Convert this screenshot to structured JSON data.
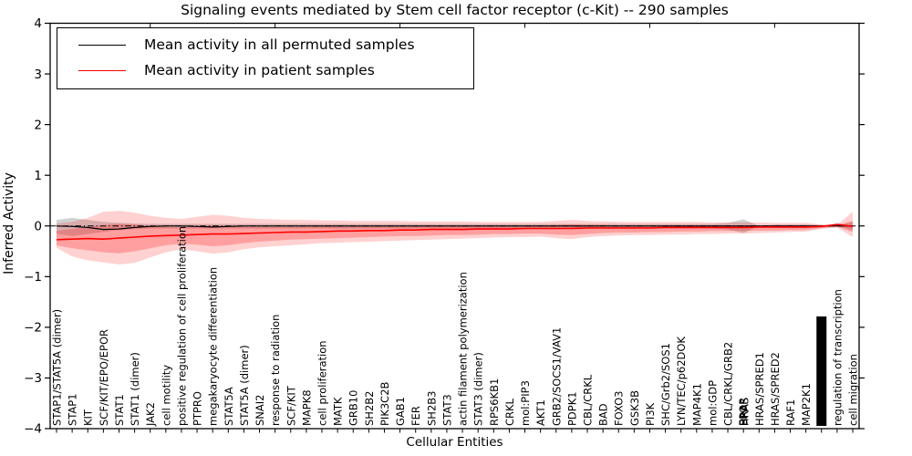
{
  "chart_data": {
    "type": "line",
    "title": "Signaling events mediated by Stem cell factor receptor (c-Kit) -- 290 samples",
    "xlabel": "Cellular Entities",
    "ylabel": "Inferred Activity",
    "ylim": [
      -4,
      4
    ],
    "ytick_labels": [
      "4",
      "3",
      "2",
      "1",
      "0",
      "−1",
      "−2",
      "−3",
      "−4"
    ],
    "grid": false,
    "legend_position": "upper left",
    "legend": [
      {
        "label": "Mean activity in all permuted samples",
        "color": "#000000"
      },
      {
        "label": "Mean activity in patient samples",
        "color": "#ff0000"
      }
    ],
    "zero_line": 0,
    "colors": {
      "permuted_line": "#000000",
      "patient_line": "#ff0000",
      "band_red": "#ff0000",
      "band_gray": "#999999",
      "cluster_block": "#000000"
    },
    "x_labels": [
      {
        "t": "STAP1/STAT5A (dimer)"
      },
      {
        "t": "STAP1"
      },
      {
        "t": "KIT"
      },
      {
        "t": "SCF/KIT/EPO/EPOR"
      },
      {
        "t": "STAT1"
      },
      {
        "t": "STAT1 (dimer)"
      },
      {
        "t": "JAK2"
      },
      {
        "t": "cell motility"
      },
      {
        "t": "positive regulation of cell proliferation"
      },
      {
        "t": "PTPRO"
      },
      {
        "t": "megakaryocyte differentiation"
      },
      {
        "t": "STAT5A"
      },
      {
        "t": "STAT5A (dimer)"
      },
      {
        "t": "SNAI2"
      },
      {
        "t": "response to radiation"
      },
      {
        "t": "SCF/KIT"
      },
      {
        "t": "MAPK8"
      },
      {
        "t": "cell proliferation"
      },
      {
        "t": "MATK"
      },
      {
        "t": "GRB10"
      },
      {
        "t": "SH2B2"
      },
      {
        "t": "PIK3C2B"
      },
      {
        "t": "GAB1"
      },
      {
        "t": "FER"
      },
      {
        "t": "SH2B3"
      },
      {
        "t": "STAT3"
      },
      {
        "t": "actin filament polymerization"
      },
      {
        "t": "STAT3 (dimer)"
      },
      {
        "t": "RPS6KB1"
      },
      {
        "t": "CRKL"
      },
      {
        "t": "mol:PIP3"
      },
      {
        "t": "AKT1"
      },
      {
        "t": "GRB2/SOCS1/VAV1"
      },
      {
        "t": "PDPK1"
      },
      {
        "t": "CBL/CRKL"
      },
      {
        "t": "BAD"
      },
      {
        "t": "FOXO3"
      },
      {
        "t": "GSK3B"
      },
      {
        "t": "PI3K"
      },
      {
        "t": "SHC/Grb2/SOS1"
      },
      {
        "t": "LYN/TEC/p62DOK"
      },
      {
        "t": "MAP4K1"
      },
      {
        "t": "mol:GDP"
      },
      {
        "t": "CBL/CRKL/GRB2"
      },
      {
        "t": "",
        "cluster": "overlap",
        "labels": [
          "EPOR",
          "BRAF",
          "HRAS"
        ]
      },
      {
        "t": "HRAS/SPRED1"
      },
      {
        "t": "HRAS/SPRED2"
      },
      {
        "t": "RAF1"
      },
      {
        "t": "MAP2K1"
      },
      {
        "t": "",
        "cluster": "block"
      },
      {
        "t": "regulation of transcription"
      },
      {
        "t": "cell migration"
      }
    ],
    "series": [
      {
        "name": "Mean activity in all permuted samples",
        "values": [
          0.0,
          -0.01,
          -0.03,
          -0.07,
          -0.06,
          -0.03,
          -0.01,
          0,
          0,
          -0.01,
          -0.02,
          -0.01,
          0,
          0,
          0,
          0,
          0,
          0,
          0,
          0,
          0,
          0,
          0,
          0,
          0,
          0,
          0,
          0,
          0,
          0,
          0,
          0,
          0,
          0,
          0,
          0,
          0,
          0,
          0,
          0,
          0,
          0,
          0,
          0,
          0,
          0,
          0,
          0,
          0,
          0,
          0,
          0
        ]
      },
      {
        "name": "Mean activity in patient samples",
        "values": [
          -0.27,
          -0.26,
          -0.25,
          -0.26,
          -0.24,
          -0.22,
          -0.2,
          -0.19,
          -0.18,
          -0.17,
          -0.16,
          -0.16,
          -0.15,
          -0.14,
          -0.13,
          -0.12,
          -0.12,
          -0.11,
          -0.1,
          -0.1,
          -0.09,
          -0.09,
          -0.08,
          -0.08,
          -0.07,
          -0.07,
          -0.07,
          -0.06,
          -0.06,
          -0.06,
          -0.05,
          -0.05,
          -0.05,
          -0.05,
          -0.04,
          -0.04,
          -0.04,
          -0.04,
          -0.04,
          -0.03,
          -0.03,
          -0.03,
          -0.03,
          -0.03,
          -0.03,
          -0.02,
          -0.02,
          -0.02,
          -0.02,
          -0.01,
          0.03,
          -0.01
        ]
      }
    ],
    "bands": {
      "patient_outer": {
        "upper": [
          0.05,
          0.08,
          0.16,
          0.28,
          0.3,
          0.26,
          0.2,
          0.16,
          0.14,
          0.18,
          0.22,
          0.2,
          0.16,
          0.14,
          0.13,
          0.12,
          0.12,
          0.11,
          0.11,
          0.1,
          0.1,
          0.1,
          0.1,
          0.09,
          0.09,
          0.09,
          0.09,
          0.08,
          0.08,
          0.08,
          0.08,
          0.08,
          0.1,
          0.12,
          0.1,
          0.09,
          0.08,
          0.08,
          0.08,
          0.08,
          0.08,
          0.08,
          0.07,
          0.07,
          0.07,
          0.07,
          0.06,
          0.06,
          0.06,
          0.03,
          0.02,
          0.28
        ],
        "lower": [
          -0.43,
          -0.6,
          -0.68,
          -0.72,
          -0.76,
          -0.73,
          -0.62,
          -0.52,
          -0.46,
          -0.5,
          -0.55,
          -0.52,
          -0.46,
          -0.42,
          -0.4,
          -0.38,
          -0.36,
          -0.34,
          -0.33,
          -0.32,
          -0.31,
          -0.3,
          -0.29,
          -0.28,
          -0.27,
          -0.26,
          -0.25,
          -0.24,
          -0.23,
          -0.22,
          -0.22,
          -0.21,
          -0.24,
          -0.26,
          -0.22,
          -0.2,
          -0.19,
          -0.18,
          -0.18,
          -0.17,
          -0.17,
          -0.16,
          -0.16,
          -0.15,
          -0.15,
          -0.14,
          -0.13,
          -0.12,
          -0.11,
          -0.06,
          -0.03,
          -0.22
        ]
      },
      "patient_inner": {
        "upper": [
          -0.1,
          -0.06,
          -0.02,
          0.02,
          0.04,
          0.03,
          0.0,
          -0.02,
          -0.03,
          -0.01,
          0.01,
          0.0,
          -0.02,
          -0.02,
          -0.02,
          -0.02,
          -0.02,
          -0.01,
          -0.01,
          -0.01,
          -0.01,
          -0.01,
          0.0,
          0.0,
          0.0,
          0.0,
          0.0,
          0.0,
          0.0,
          0.0,
          0.01,
          0.01,
          0.02,
          0.03,
          0.02,
          0.02,
          0.01,
          0.01,
          0.01,
          0.01,
          0.01,
          0.01,
          0.01,
          0.01,
          0.01,
          0.01,
          0.01,
          0.01,
          0.01,
          0.01,
          0.02,
          0.1
        ],
        "lower": [
          -0.38,
          -0.44,
          -0.48,
          -0.52,
          -0.54,
          -0.5,
          -0.44,
          -0.38,
          -0.35,
          -0.37,
          -0.4,
          -0.38,
          -0.34,
          -0.31,
          -0.29,
          -0.27,
          -0.26,
          -0.25,
          -0.24,
          -0.23,
          -0.22,
          -0.21,
          -0.2,
          -0.2,
          -0.19,
          -0.18,
          -0.18,
          -0.17,
          -0.16,
          -0.16,
          -0.15,
          -0.15,
          -0.17,
          -0.18,
          -0.16,
          -0.14,
          -0.13,
          -0.13,
          -0.12,
          -0.12,
          -0.11,
          -0.11,
          -0.1,
          -0.1,
          -0.1,
          -0.09,
          -0.09,
          -0.08,
          -0.08,
          -0.04,
          -0.02,
          -0.12
        ]
      },
      "permuted_gray": {
        "upper": [
          0.12,
          0.16,
          0.12,
          0.08,
          0.06,
          0.05,
          0.04,
          0.04,
          0.04,
          0.04,
          0.04,
          0.04,
          0.04,
          0.04,
          0.04,
          0.04,
          0.04,
          0.04,
          0.04,
          0.04,
          0.04,
          0.04,
          0.04,
          0.04,
          0.04,
          0.04,
          0.04,
          0.04,
          0.04,
          0.04,
          0.04,
          0.04,
          0.04,
          0.04,
          0.04,
          0.04,
          0.04,
          0.04,
          0.04,
          0.04,
          0.04,
          0.04,
          0.04,
          0.06,
          0.13,
          0.0,
          0.03,
          0.03,
          0.03,
          0.02,
          0.0,
          0.08
        ],
        "lower": [
          -0.15,
          -0.2,
          -0.16,
          -0.12,
          -0.08,
          -0.06,
          -0.05,
          -0.05,
          -0.05,
          -0.05,
          -0.05,
          -0.05,
          -0.05,
          -0.05,
          -0.05,
          -0.05,
          -0.05,
          -0.05,
          -0.05,
          -0.05,
          -0.05,
          -0.05,
          -0.05,
          -0.05,
          -0.05,
          -0.05,
          -0.05,
          -0.05,
          -0.05,
          -0.05,
          -0.05,
          -0.05,
          -0.05,
          -0.05,
          -0.05,
          -0.05,
          -0.05,
          -0.05,
          -0.05,
          -0.05,
          -0.05,
          -0.05,
          -0.05,
          -0.07,
          -0.14,
          0.0,
          -0.04,
          -0.04,
          -0.04,
          -0.03,
          0.0,
          -0.08
        ]
      }
    }
  }
}
